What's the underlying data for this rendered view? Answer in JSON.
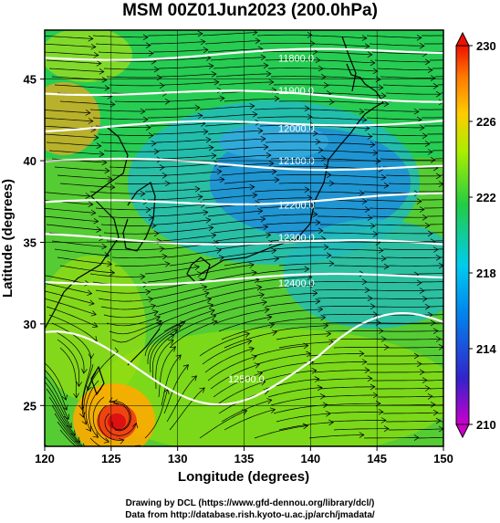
{
  "title": "MSM 00Z01Jun2023 (200.0hPa)",
  "x_axis": {
    "label": "Longitude (degrees)",
    "ticks": [
      "120",
      "125",
      "130",
      "135",
      "140",
      "145",
      "150"
    ],
    "range": [
      120,
      150
    ]
  },
  "y_axis": {
    "label": "Latitude  (degrees)",
    "ticks": [
      "25",
      "30",
      "35",
      "40",
      "45"
    ],
    "range": [
      22.5,
      48
    ]
  },
  "colorbar": {
    "ticks": [
      "230",
      "226",
      "222",
      "218",
      "214",
      "210"
    ],
    "range": [
      210,
      230
    ],
    "colors": [
      "#cc00cc",
      "#2222cc",
      "#00aaee",
      "#22cc44",
      "#ccee00",
      "#ff9900",
      "#ee2200"
    ]
  },
  "contours": [
    {
      "label": "11800.0",
      "lat": 46.3
    },
    {
      "label": "11900.0",
      "lat": 44.3
    },
    {
      "label": "12000.0",
      "lat": 42.0
    },
    {
      "label": "12100.0",
      "lat": 40.0
    },
    {
      "label": "12200.0",
      "lat": 37.3
    },
    {
      "label": "12300.0",
      "lat": 35.3
    },
    {
      "label": "12400.0",
      "lat": 32.5
    },
    {
      "label": "12500.0",
      "lat": 27.3
    }
  ],
  "credits": {
    "line1": "Drawing by DCL (https://www.gfd-dennou.org/library/dcl/)",
    "line2": "Data from http://database.rish.kyoto-u.ac.jp/arch/jmadata/"
  }
}
